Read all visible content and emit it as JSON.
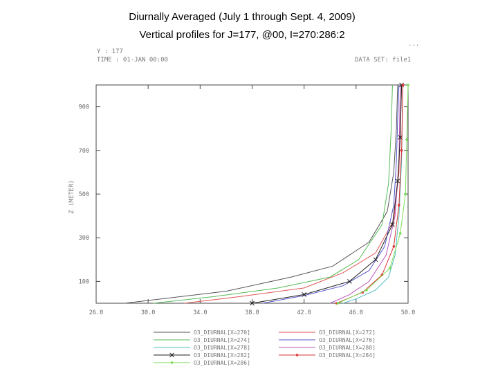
{
  "header": {
    "title_line1": "Diurnally Averaged (July 1 through Sept. 4, 2009)",
    "title_line2": "Vertical profiles for J=177, @00, I=270:286:2"
  },
  "plot_header": {
    "y_label": "Y : 177",
    "time_label": "TIME : 01-JAN 00:00",
    "dataset_label": "DATA SET: file1",
    "corner_text": "..."
  },
  "chart_data": {
    "type": "line",
    "xlabel": "",
    "ylabel": "Z (METER)",
    "xlim": [
      26,
      50
    ],
    "ylim": [
      0,
      1000
    ],
    "x_ticks": [
      "26.0",
      "30.0",
      "34.0",
      "38.0",
      "42.0",
      "46.0",
      "50.0"
    ],
    "y_ticks": [
      "100",
      "300",
      "500",
      "700",
      "900"
    ],
    "grid": false,
    "legend_position": "bottom",
    "series": [
      {
        "name": "O3_DIURNAL[X=270]",
        "color": "#555555",
        "marker": "none",
        "points": [
          [
            28.2,
            0
          ],
          [
            31,
            20
          ],
          [
            36,
            55
          ],
          [
            41,
            120
          ],
          [
            44.2,
            170
          ],
          [
            47,
            280
          ],
          [
            48.4,
            420
          ],
          [
            48.9,
            600
          ],
          [
            49.1,
            800
          ],
          [
            49.2,
            1000
          ]
        ]
      },
      {
        "name": "O3_DIURNAL[X=272]",
        "color": "#e05555",
        "marker": "none",
        "points": [
          [
            32.8,
            0
          ],
          [
            37,
            30
          ],
          [
            42,
            70
          ],
          [
            45,
            140
          ],
          [
            47.5,
            230
          ],
          [
            48.9,
            380
          ],
          [
            49.3,
            600
          ],
          [
            49.4,
            800
          ],
          [
            49.5,
            1000
          ]
        ]
      },
      {
        "name": "O3_DIURNAL[X=274]",
        "color": "#55bb55",
        "marker": "none",
        "points": [
          [
            30.4,
            0
          ],
          [
            35,
            30
          ],
          [
            40,
            70
          ],
          [
            44,
            120
          ],
          [
            46.2,
            200
          ],
          [
            48,
            360
          ],
          [
            48.5,
            550
          ],
          [
            48.7,
            800
          ],
          [
            48.8,
            1000
          ]
        ]
      },
      {
        "name": "O3_DIURNAL[X=276]",
        "color": "#5555cc",
        "marker": "none",
        "points": [
          [
            38.8,
            0
          ],
          [
            42,
            35
          ],
          [
            45,
            80
          ],
          [
            47,
            150
          ],
          [
            48.2,
            260
          ],
          [
            48.9,
            450
          ],
          [
            49.1,
            650
          ],
          [
            49.2,
            850
          ],
          [
            49.3,
            1000
          ]
        ]
      },
      {
        "name": "O3_DIURNAL[X=278]",
        "color": "#55bbbb",
        "marker": "none",
        "points": [
          [
            45,
            0
          ],
          [
            46,
            20
          ],
          [
            47.5,
            60
          ],
          [
            48.5,
            120
          ],
          [
            49,
            220
          ],
          [
            49.3,
            400
          ],
          [
            49.5,
            650
          ],
          [
            49.6,
            1000
          ]
        ]
      },
      {
        "name": "O3_DIURNAL[X=280]",
        "color": "#bb55bb",
        "marker": "none",
        "points": [
          [
            44,
            0
          ],
          [
            45.5,
            40
          ],
          [
            47,
            100
          ],
          [
            48.3,
            220
          ],
          [
            49,
            400
          ],
          [
            49.3,
            650
          ],
          [
            49.4,
            1000
          ]
        ]
      },
      {
        "name": "O3_DIURNAL[X=282]",
        "color": "#222222",
        "marker": "cross",
        "points": [
          [
            38,
            0
          ],
          [
            42,
            40
          ],
          [
            45.5,
            100
          ],
          [
            47.5,
            200
          ],
          [
            48.8,
            360
          ],
          [
            49.2,
            560
          ],
          [
            49.4,
            760
          ],
          [
            49.5,
            1000
          ]
        ]
      },
      {
        "name": "O3_DIURNAL[X=284]",
        "color": "#dd3333",
        "marker": "dot",
        "points": [
          [
            44.5,
            0
          ],
          [
            46.5,
            50
          ],
          [
            48,
            130
          ],
          [
            48.9,
            260
          ],
          [
            49.3,
            450
          ],
          [
            49.5,
            700
          ],
          [
            49.6,
            1000
          ]
        ]
      },
      {
        "name": "O3_DIURNAL[X=286]",
        "color": "#77dd55",
        "marker": "dot",
        "points": [
          [
            44.6,
            0
          ],
          [
            46.8,
            60
          ],
          [
            48.6,
            160
          ],
          [
            49.4,
            320
          ],
          [
            49.8,
            500
          ],
          [
            49.9,
            750
          ],
          [
            50,
            1000
          ]
        ]
      }
    ]
  }
}
